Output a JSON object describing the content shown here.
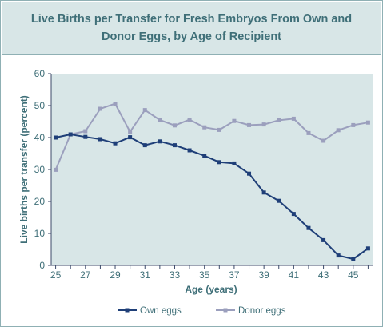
{
  "chart_data": {
    "type": "line",
    "title_line1": "Live Births per Transfer for Fresh Embryos From Own and",
    "title_line2": "Donor Eggs, by Age of Recipient",
    "xlabel": "Age (years)",
    "ylabel": "Live births per transfer (percent)",
    "xlim": [
      24.7,
      46.3
    ],
    "ylim": [
      0,
      60
    ],
    "grid": false,
    "legend_position": "bottom",
    "x": [
      25,
      26,
      27,
      28,
      29,
      30,
      31,
      32,
      33,
      34,
      35,
      36,
      37,
      38,
      39,
      40,
      41,
      42,
      43,
      44,
      45,
      46
    ],
    "x_tick_labels": [
      "25",
      "27",
      "29",
      "31",
      "33",
      "35",
      "37",
      "39",
      "41",
      "43",
      "45"
    ],
    "y_tick_labels": [
      "0",
      "10",
      "20",
      "30",
      "40",
      "50",
      "60"
    ],
    "series": [
      {
        "name": "Own eggs",
        "color": "#1f3f78",
        "values": [
          40.0,
          41.0,
          40.2,
          39.5,
          38.2,
          40.1,
          37.6,
          38.8,
          37.6,
          36.0,
          34.3,
          32.3,
          31.9,
          28.7,
          22.8,
          20.2,
          16.1,
          11.7,
          7.9,
          3.1,
          2.0,
          5.3
        ]
      },
      {
        "name": "Donor eggs",
        "color": "#9b9fbd",
        "values": [
          29.9,
          41.0,
          42.0,
          49.0,
          50.6,
          41.8,
          48.6,
          45.5,
          43.8,
          45.6,
          43.2,
          42.4,
          45.2,
          43.9,
          44.1,
          45.4,
          45.9,
          41.4,
          39.0,
          42.3,
          43.9,
          44.7
        ]
      }
    ]
  }
}
